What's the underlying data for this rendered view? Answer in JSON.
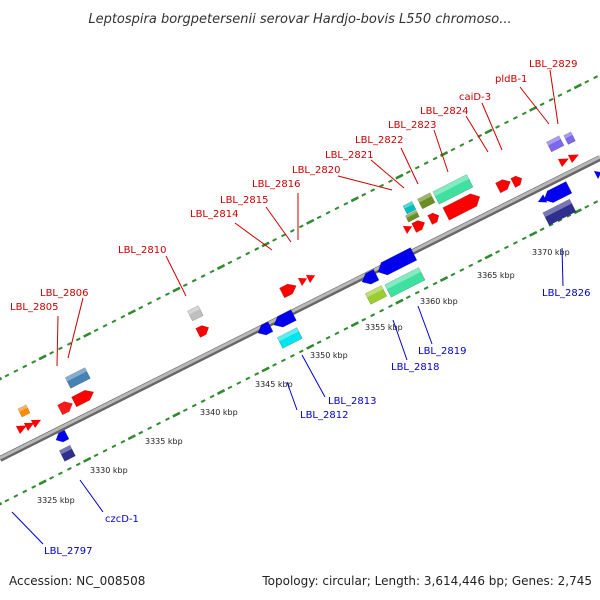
{
  "map": {
    "title": "Leptospira borgpetersenii serovar Hardjo-bovis L550 chromoso...",
    "footer": {
      "accession": "Accession: NC_008508",
      "summary": "Topology: circular; Length: 3,614,446 bp; Genes: 2,745"
    },
    "colors": {
      "backbone": "#8a8a8a",
      "tick_dots": "#2e8b2e",
      "forward_label": "#cc0000",
      "reverse_label": "#0000cc",
      "leader_line_forward": "#cc0000",
      "leader_line_reverse": "#0000cc"
    },
    "ticks": [
      {
        "label": "3325 kbp",
        "kbp": 3325
      },
      {
        "label": "3330 kbp",
        "kbp": 3330
      },
      {
        "label": "3335 kbp",
        "kbp": 3335
      },
      {
        "label": "3340 kbp",
        "kbp": 3340
      },
      {
        "label": "3345 kbp",
        "kbp": 3345
      },
      {
        "label": "3350 kbp",
        "kbp": 3350
      },
      {
        "label": "3355 kbp",
        "kbp": 3355
      },
      {
        "label": "3360 kbp",
        "kbp": 3360
      },
      {
        "label": "3365 kbp",
        "kbp": 3365
      },
      {
        "label": "3370 kbp",
        "kbp": 3370
      }
    ],
    "forward_labels": [
      {
        "text": "LBL_2805"
      },
      {
        "text": "LBL_2806"
      },
      {
        "text": "LBL_2810"
      },
      {
        "text": "LBL_2814"
      },
      {
        "text": "LBL_2815"
      },
      {
        "text": "LBL_2816"
      },
      {
        "text": "LBL_2820"
      },
      {
        "text": "LBL_2821"
      },
      {
        "text": "LBL_2822"
      },
      {
        "text": "LBL_2823"
      },
      {
        "text": "LBL_2824"
      },
      {
        "text": "caiD-3"
      },
      {
        "text": "pldB-1"
      },
      {
        "text": "LBL_2829"
      }
    ],
    "reverse_labels": [
      {
        "text": "LBL_2797"
      },
      {
        "text": "czcD-1"
      },
      {
        "text": "LBL_2812"
      },
      {
        "text": "LBL_2813"
      },
      {
        "text": "LBL_2818"
      },
      {
        "text": "LBL_2819"
      },
      {
        "text": "LBL_2826"
      }
    ]
  }
}
